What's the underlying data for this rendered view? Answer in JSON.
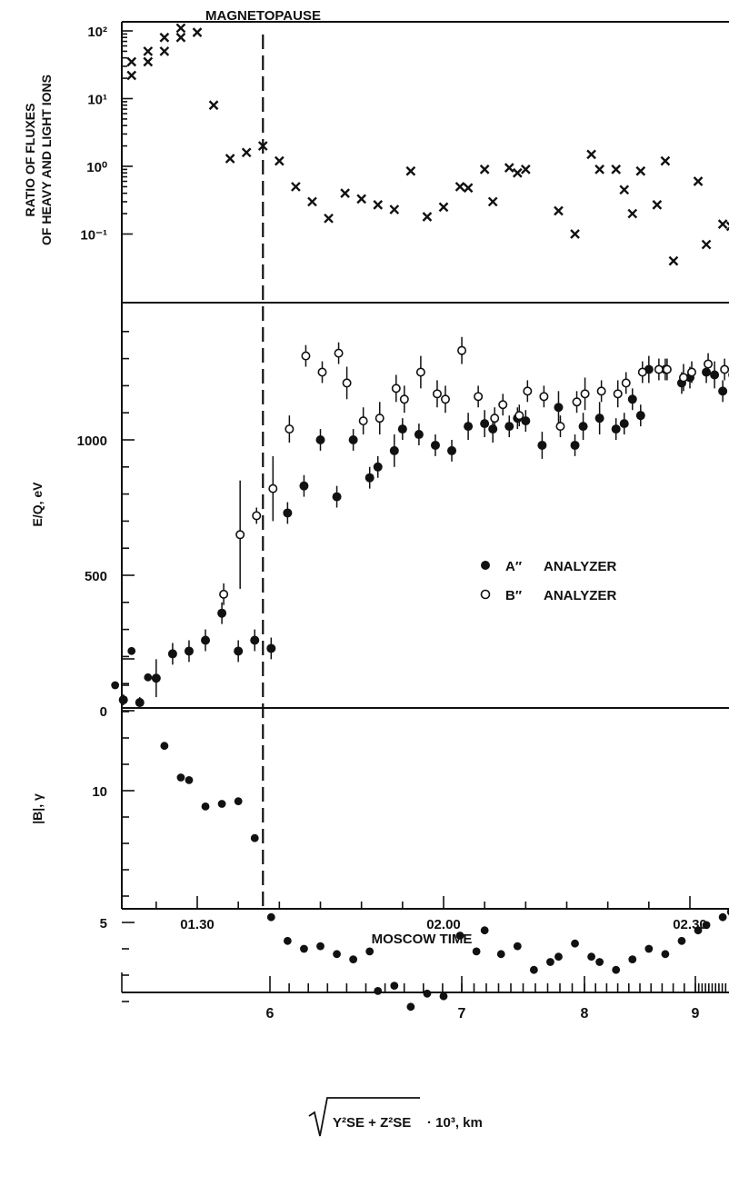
{
  "event_label": "MAGNETOPAUSE",
  "legend": {
    "a_symbol": "A″",
    "a_label": "ANALYZER",
    "b_symbol": "B″",
    "b_label": "ANALYZER"
  },
  "axis_text": {
    "panel1_ylabel_line1": "RATIO OF FLUXES",
    "panel1_ylabel_line2": "OF HEAVY AND LIGHT IONS",
    "panel2_ylabel": "E/Q, eV",
    "panel3_ylabel": "|B|, γ",
    "time_axis_label": "MOSCOW TIME",
    "distance_axis_label": "· 10³, km",
    "distance_sqrt_expr": "Y²SE + Z²SE"
  },
  "chart_data": [
    {
      "type": "scatter",
      "panel": "top",
      "ylabel": "RATIO OF FLUXES OF HEAVY AND LIGHT IONS",
      "yscale": "log",
      "ylim": [
        0.01,
        100
      ],
      "y_ticks": [
        "10²",
        "10¹",
        "10⁰",
        "10⁻¹"
      ],
      "y_tick_values": [
        100,
        10,
        1,
        0.1
      ],
      "xlim": [
        "01:20",
        "02:44"
      ],
      "marker": "x",
      "x": [
        "01:22",
        "01:22",
        "01:24",
        "01:24",
        "01:26",
        "01:26",
        "01:28",
        "01:28",
        "01:30",
        "01:32",
        "01:34",
        "01:36",
        "01:38",
        "01:40",
        "01:42",
        "01:44",
        "01:46",
        "01:48",
        "01:50",
        "01:52",
        "01:54",
        "01:56",
        "01:58",
        "02:00",
        "02:02",
        "02:03",
        "02:05",
        "02:06",
        "02:08",
        "02:09",
        "02:10",
        "02:14",
        "02:16",
        "02:18",
        "02:19",
        "02:21",
        "02:22",
        "02:23",
        "02:24",
        "02:26",
        "02:27",
        "02:28",
        "02:31",
        "02:32",
        "02:34",
        "02:35",
        "02:37",
        "02:38",
        "02:39",
        "02:42"
      ],
      "y": [
        35,
        22,
        50,
        35,
        80,
        50,
        110,
        80,
        95,
        8,
        1.3,
        1.6,
        2.0,
        1.2,
        0.5,
        0.3,
        0.17,
        0.4,
        0.33,
        0.27,
        0.23,
        0.85,
        0.18,
        0.25,
        0.5,
        0.48,
        0.9,
        0.3,
        0.95,
        0.8,
        0.9,
        0.22,
        0.1,
        1.5,
        0.9,
        0.9,
        0.45,
        0.2,
        0.85,
        0.27,
        1.2,
        0.04,
        0.6,
        0.07,
        0.14,
        0.13,
        0.04,
        0.06,
        0.13,
        0.045
      ]
    },
    {
      "type": "scatter",
      "panel": "middle",
      "ylabel": "E/Q, eV",
      "ylim": [
        0,
        1450
      ],
      "y_ticks": [
        "1000",
        "500",
        "0"
      ],
      "y_tick_values": [
        1000,
        500,
        0
      ],
      "xlim": [
        "01:20",
        "02:44"
      ],
      "series": [
        {
          "name": "A″ ANALYZER",
          "marker": "filled-circle",
          "x": [
            "01:21",
            "01:23",
            "01:25",
            "01:27",
            "01:29",
            "01:31",
            "01:33",
            "01:35",
            "01:37",
            "01:39",
            "01:41",
            "01:43",
            "01:45",
            "01:47",
            "01:49",
            "01:51",
            "01:52",
            "01:54",
            "01:55",
            "01:57",
            "01:59",
            "02:01",
            "02:03",
            "02:05",
            "02:06",
            "02:08",
            "02:09",
            "02:10",
            "02:12",
            "02:14",
            "02:16",
            "02:17",
            "02:19",
            "02:21",
            "02:22",
            "02:23",
            "02:24",
            "02:25",
            "02:27",
            "02:29",
            "02:30",
            "02:32",
            "02:33",
            "02:34",
            "02:36",
            "02:38",
            "02:40",
            "02:42",
            "02:44"
          ],
          "y": [
            40,
            30,
            120,
            210,
            220,
            260,
            360,
            220,
            260,
            230,
            730,
            830,
            1000,
            790,
            1000,
            860,
            900,
            960,
            1040,
            1020,
            980,
            960,
            1050,
            1060,
            1040,
            1050,
            1080,
            1070,
            980,
            1120,
            980,
            1050,
            1080,
            1040,
            1060,
            1150,
            1090,
            1260,
            1260,
            1210,
            1230,
            1250,
            1240,
            1180,
            1230,
            1200,
            1200,
            1230,
            1250
          ],
          "err": [
            20,
            20,
            70,
            40,
            40,
            40,
            40,
            40,
            40,
            40,
            40,
            40,
            40,
            40,
            40,
            40,
            40,
            60,
            40,
            40,
            40,
            40,
            50,
            50,
            50,
            40,
            40,
            40,
            50,
            60,
            40,
            50,
            60,
            40,
            40,
            40,
            40,
            50,
            40,
            40,
            40,
            40,
            50,
            40,
            80,
            60,
            60,
            110,
            60
          ]
        },
        {
          "name": "B″ ANALYZER",
          "marker": "open-circle",
          "x": [
            "01:33",
            "01:35",
            "01:37",
            "01:39",
            "01:41",
            "01:43",
            "01:45",
            "01:47",
            "01:48",
            "01:50",
            "01:52",
            "01:54",
            "01:55",
            "01:57",
            "01:59",
            "02:00",
            "02:02",
            "02:04",
            "02:06",
            "02:07",
            "02:09",
            "02:10",
            "02:12",
            "02:14",
            "02:16",
            "02:17",
            "02:19",
            "02:21",
            "02:22",
            "02:24",
            "02:26",
            "02:27",
            "02:29",
            "02:30",
            "02:32",
            "02:34",
            "02:35"
          ],
          "y": [
            430,
            650,
            720,
            820,
            1040,
            1310,
            1250,
            1320,
            1210,
            1070,
            1080,
            1190,
            1150,
            1250,
            1170,
            1150,
            1330,
            1160,
            1080,
            1130,
            1090,
            1180,
            1160,
            1050,
            1140,
            1170,
            1180,
            1170,
            1210,
            1250,
            1260,
            1260,
            1230,
            1250,
            1280,
            1260,
            1240
          ],
          "err": [
            40,
            200,
            30,
            120,
            50,
            40,
            40,
            40,
            60,
            50,
            60,
            50,
            50,
            60,
            50,
            50,
            50,
            40,
            40,
            40,
            40,
            40,
            40,
            40,
            40,
            60,
            40,
            50,
            40,
            40,
            40,
            40,
            50,
            40,
            40,
            40,
            40
          ]
        }
      ],
      "legend_position": "right"
    },
    {
      "type": "scatter",
      "panel": "bottom",
      "ylabel": "|B|, γ",
      "ylim": [
        1,
        16.5
      ],
      "y_ticks": [
        "10",
        "5"
      ],
      "y_tick_values": [
        10,
        5
      ],
      "y_inverted": true,
      "xlim": [
        "01:20",
        "02:44"
      ],
      "marker": "filled-circle",
      "x": [
        "01:20",
        "01:22",
        "01:24",
        "01:26",
        "01:28",
        "01:29",
        "01:31",
        "01:33",
        "01:35",
        "01:37",
        "01:39",
        "01:41",
        "01:43",
        "01:45",
        "01:47",
        "01:49",
        "01:51",
        "01:52",
        "01:54",
        "01:56",
        "01:58",
        "02:00",
        "02:02",
        "02:04",
        "02:05",
        "02:07",
        "02:09",
        "02:11",
        "02:13",
        "02:14",
        "02:16",
        "02:18",
        "02:19",
        "02:21",
        "02:23",
        "02:25",
        "02:27",
        "02:29",
        "02:31",
        "02:32",
        "02:34",
        "02:35",
        "02:37",
        "02:39",
        "02:40",
        "02:42"
      ],
      "y": [
        14,
        15.3,
        14.3,
        11.7,
        10.5,
        10.4,
        9.4,
        9.5,
        9.6,
        8.2,
        5.2,
        4.3,
        4.0,
        4.1,
        3.8,
        3.6,
        3.9,
        2.4,
        2.6,
        1.8,
        2.3,
        2.2,
        4.5,
        3.9,
        4.7,
        3.8,
        4.1,
        3.2,
        3.5,
        3.7,
        4.2,
        3.7,
        3.5,
        3.2,
        3.6,
        4.0,
        3.8,
        4.3,
        4.7,
        4.9,
        5.2,
        5.4,
        5.8,
        4.9,
        5.1,
        5.2
      ]
    }
  ],
  "x_axis": {
    "time_ticks": [
      "01.30",
      "02.00",
      "02.30"
    ],
    "distance_ticks": [
      "6",
      "7",
      "8",
      "9"
    ],
    "magnetopause_time": "01:38"
  }
}
